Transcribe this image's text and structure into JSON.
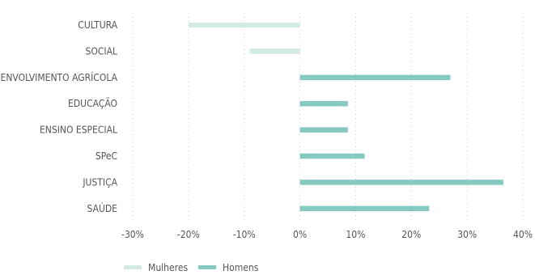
{
  "chart_data": {
    "type": "bar",
    "orientation": "horizontal",
    "title": "",
    "xlabel": "",
    "ylabel": "",
    "categories": [
      "CULTURA",
      "SOCIAL",
      "DESENVOLVIMENTO AGRÍCOLA",
      "EDUCAÇÃO",
      "ENSINO ESPECIAL",
      "SPeC",
      "JUSTIÇA",
      "SAÚDE"
    ],
    "series": [
      {
        "name": "Mulheres",
        "color": "#d3ebe7",
        "values": [
          -20,
          -9,
          0,
          0,
          0,
          0,
          0,
          0
        ]
      },
      {
        "name": "Homens",
        "color": "#86c9c0",
        "values": [
          0,
          0,
          27,
          8.6,
          8.6,
          11.6,
          36.5,
          23.2
        ]
      }
    ],
    "xlim": [
      -30,
      40
    ],
    "xticks": [
      -30,
      -20,
      -10,
      0,
      10,
      20,
      30,
      40
    ],
    "xtick_labels": [
      "-30%",
      "-20%",
      "-10%",
      "0%",
      "10%",
      "20%",
      "30%",
      "40%"
    ],
    "grid": true,
    "legend_position": "bottom-left"
  }
}
